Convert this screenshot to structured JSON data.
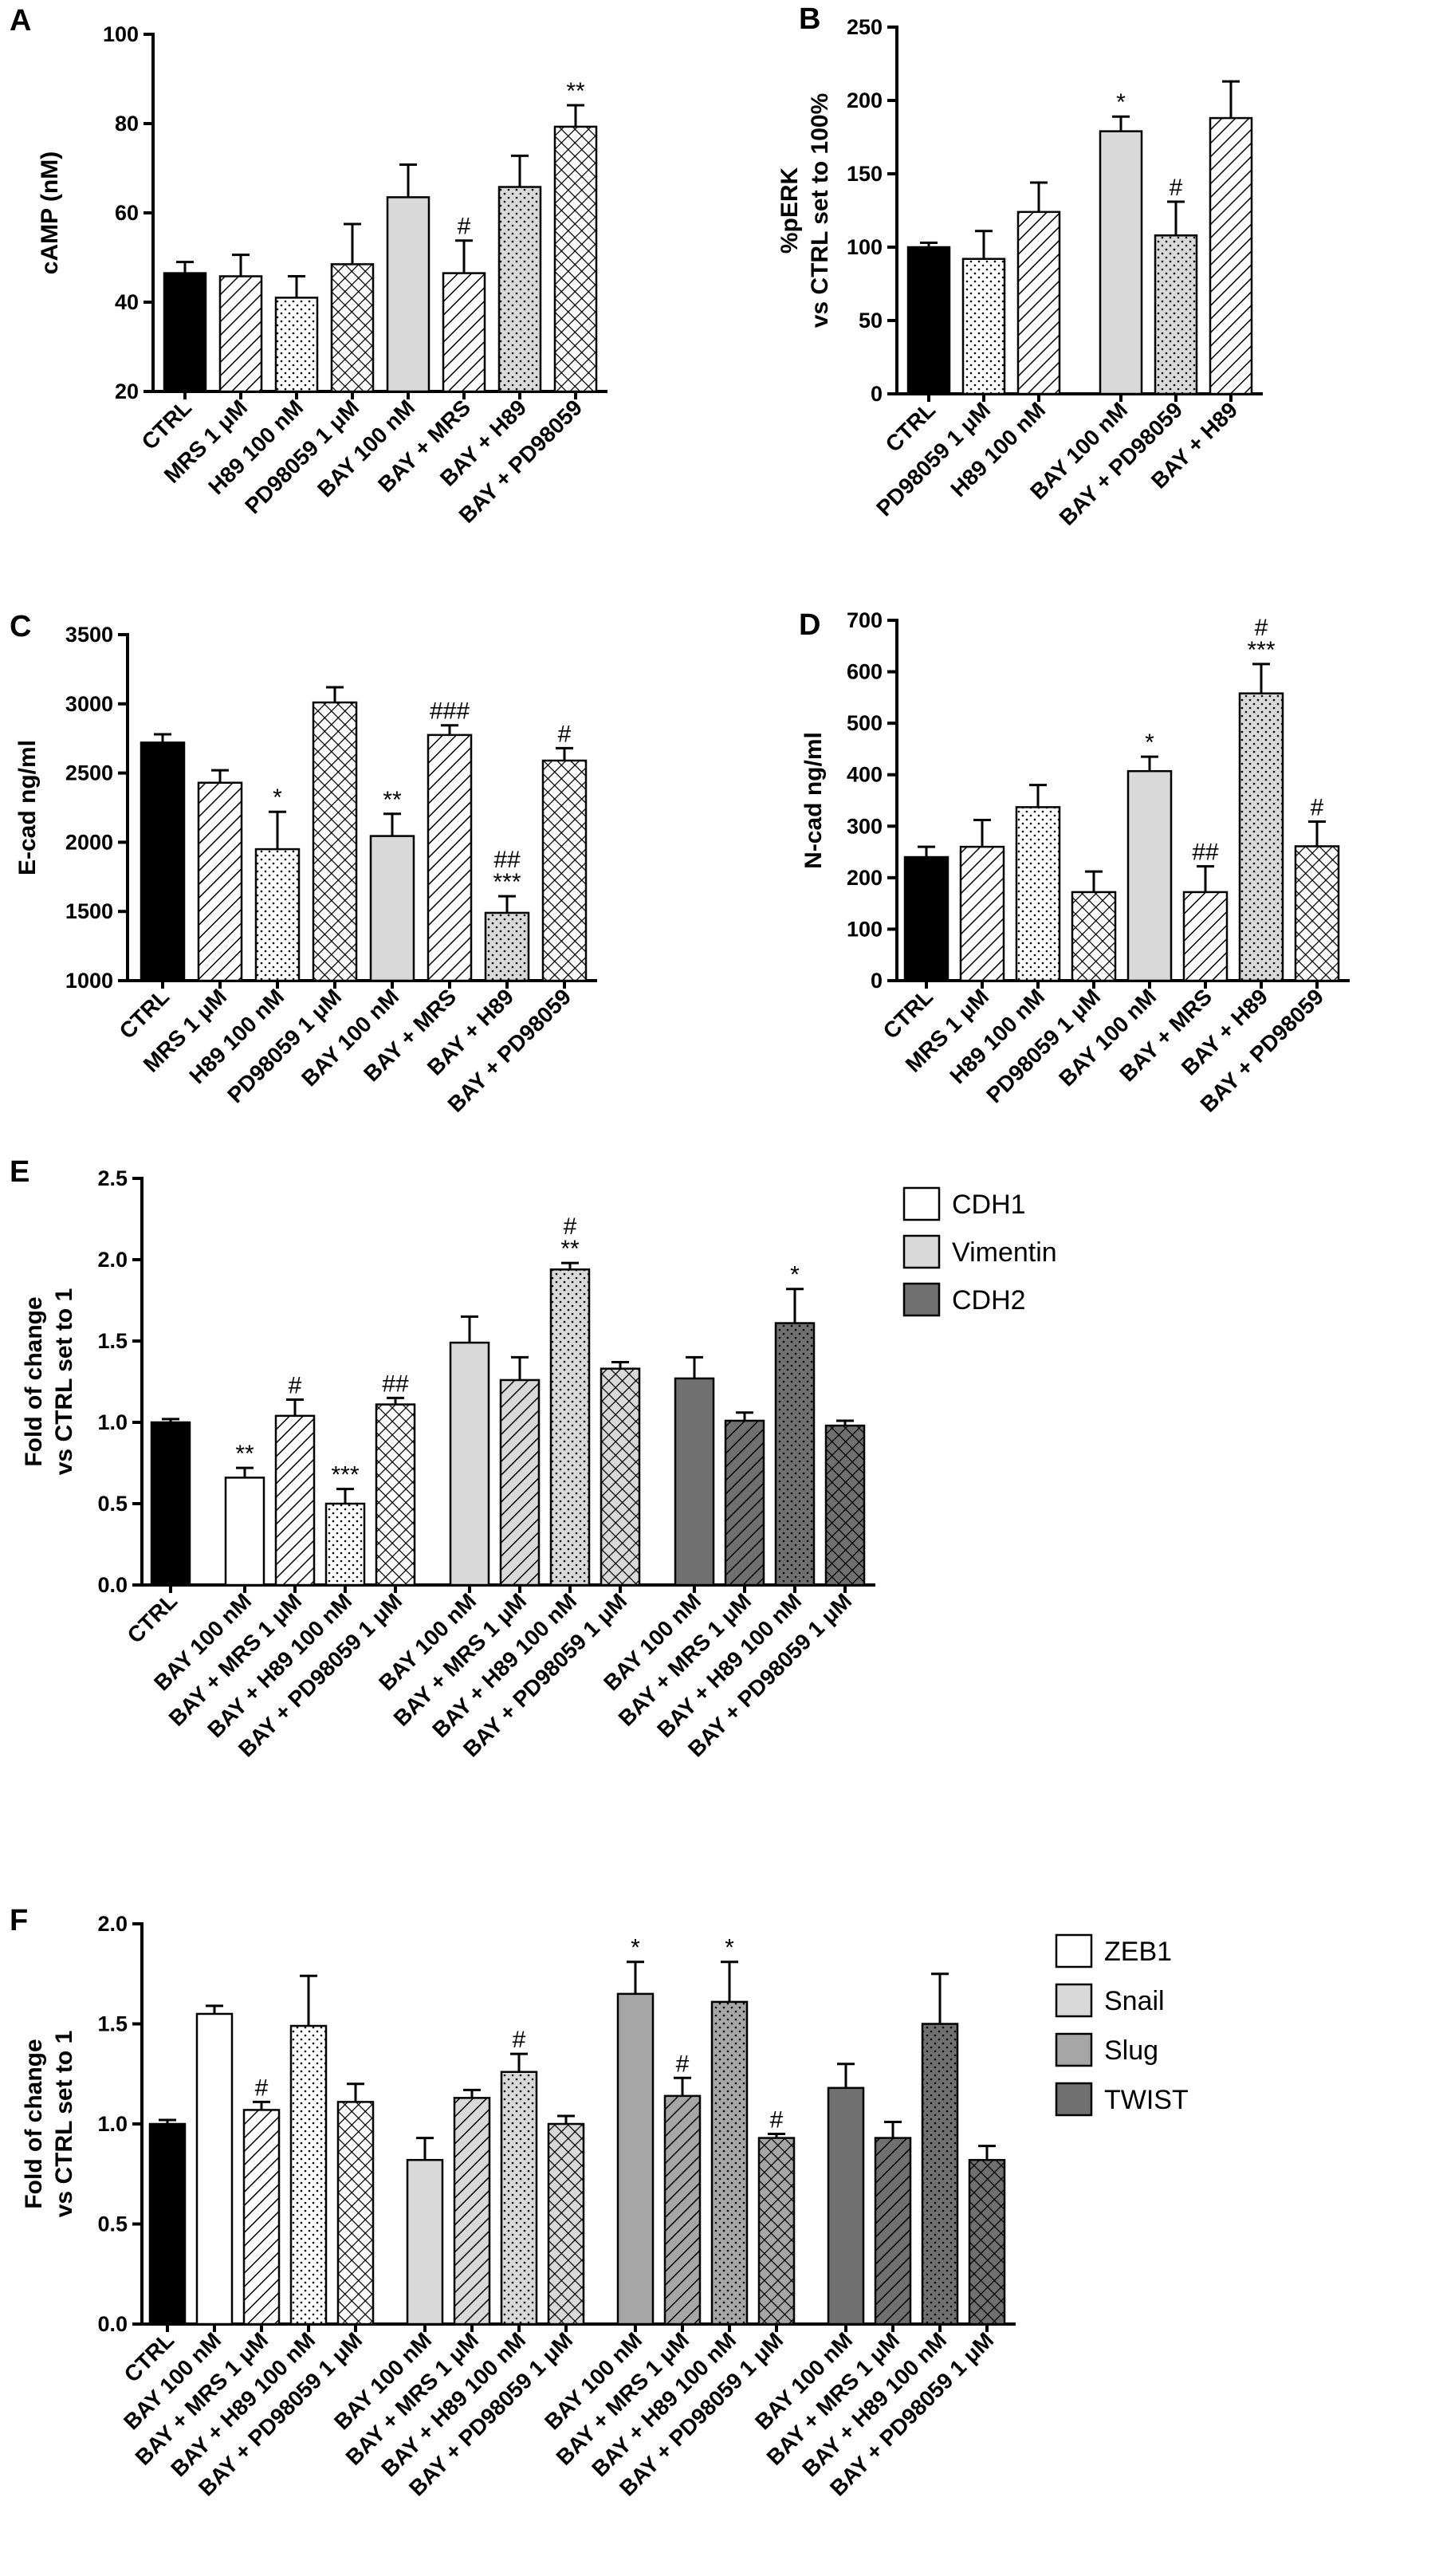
{
  "colors": {
    "black": "#000000",
    "white": "#ffffff",
    "light": "#d9d9d9",
    "mid": "#a6a6a6",
    "dark": "#707070"
  },
  "chart_data": [
    {
      "id": "A",
      "type": "bar",
      "panel_label": "A",
      "ylabel": "cAMP (nM)",
      "ylim": [
        20,
        100
      ],
      "yticks": [
        "20",
        "40",
        "60",
        "80",
        "100"
      ],
      "categories": [
        "CTRL",
        "MRS 1 μM",
        "H89 100 nM",
        "PD98059 1 μM",
        "BAY 100 nM",
        "BAY + MRS",
        "BAY + H89",
        "BAY + PD98059"
      ],
      "values": [
        46.5,
        45.8,
        41.0,
        48.5,
        63.5,
        46.5,
        65.8,
        79.3
      ],
      "errors": [
        2.5,
        4.8,
        4.8,
        9.0,
        7.3,
        7.3,
        7.0,
        4.8
      ],
      "annotations": [
        "",
        "",
        "",
        "",
        "",
        "#",
        "",
        "**"
      ],
      "fills": [
        "black",
        "hatch",
        "dots",
        "checker",
        "lightsolid",
        "hatch",
        "lightdots",
        "checker"
      ]
    },
    {
      "id": "B",
      "type": "bar",
      "panel_label": "B",
      "ylabel_lines": [
        "%pERK",
        "vs CTRL set to 100%"
      ],
      "ylim": [
        0,
        250
      ],
      "yticks": [
        "0",
        "50",
        "100",
        "150",
        "200",
        "250"
      ],
      "categories": [
        "CTRL",
        "PD98059 1 μM",
        "H89 100 nM",
        "BAY 100 nM",
        "BAY + PD98059",
        "BAY + H89"
      ],
      "values": [
        100,
        92,
        124,
        179,
        108,
        188
      ],
      "errors": [
        3,
        19,
        20,
        10,
        23,
        25
      ],
      "annotations": [
        "",
        "",
        "",
        "*",
        "#",
        ""
      ],
      "fills": [
        "black",
        "dots",
        "hatch",
        "lightsolid",
        "lightdots",
        "hatch"
      ]
    },
    {
      "id": "C",
      "type": "bar",
      "panel_label": "C",
      "ylabel": "E-cad ng/ml",
      "ylim": [
        1000,
        3500
      ],
      "yticks": [
        "1000",
        "1500",
        "2000",
        "2500",
        "3000",
        "3500"
      ],
      "categories": [
        "CTRL",
        "MRS 1 μM",
        "H89 100 nM",
        "PD98059 1 μM",
        "BAY 100 nM",
        "BAY + MRS",
        "BAY + H89",
        "BAY + PD98059"
      ],
      "values": [
        2720,
        2430,
        1950,
        3010,
        2045,
        2775,
        1490,
        2590
      ],
      "errors": [
        60,
        90,
        270,
        110,
        160,
        70,
        120,
        90
      ],
      "annotations": [
        "",
        "",
        "*",
        "",
        "**",
        "###",
        "##\n***",
        "#"
      ],
      "fills": [
        "black",
        "hatch",
        "dots",
        "checker",
        "lightsolid",
        "hatch",
        "lightdots",
        "checker"
      ]
    },
    {
      "id": "D",
      "type": "bar",
      "panel_label": "D",
      "ylabel": "N-cad ng/ml",
      "ylim": [
        0,
        700
      ],
      "yticks": [
        "0",
        "100",
        "200",
        "300",
        "400",
        "500",
        "600",
        "700"
      ],
      "categories": [
        "CTRL",
        "MRS 1 μM",
        "H89 100 nM",
        "PD98059 1 μM",
        "BAY 100 nM",
        "BAY + MRS",
        "BAY + H89",
        "BAY + PD98059"
      ],
      "values": [
        240,
        260,
        337,
        172,
        407,
        172,
        558,
        261
      ],
      "errors": [
        20,
        52,
        43,
        40,
        28,
        50,
        57,
        48
      ],
      "annotations": [
        "",
        "",
        "",
        "",
        "*",
        "##",
        "#\n***",
        "#"
      ],
      "fills": [
        "black",
        "hatch",
        "dots",
        "checker",
        "lightsolid",
        "hatch",
        "lightdots",
        "checker"
      ]
    },
    {
      "id": "E",
      "type": "bar",
      "panel_label": "E",
      "ylabel_lines": [
        "Fold of change",
        "vs CTRL set to 1"
      ],
      "ylim": [
        0,
        2.5
      ],
      "yticks": [
        "0.0",
        "0.5",
        "1.0",
        "1.5",
        "2.0",
        "2.5"
      ],
      "categories": [
        "CTRL",
        "BAY 100 nM",
        "BAY + MRS 1 μM",
        "BAY + H89 100 nM",
        "BAY + PD98059 1 μM",
        "BAY 100 nM",
        "BAY + MRS 1 μM",
        "BAY + H89 100 nM",
        "BAY + PD98059 1 μM",
        "BAY 100 nM",
        "BAY + MRS 1 μM",
        "BAY + H89 100 nM",
        "BAY + PD98059 1 μM"
      ],
      "groups": [
        1,
        4,
        4,
        4
      ],
      "values": [
        1.0,
        0.66,
        1.04,
        0.5,
        1.11,
        1.49,
        1.26,
        1.94,
        1.33,
        1.27,
        1.01,
        1.61,
        0.98
      ],
      "errors": [
        0.02,
        0.06,
        0.1,
        0.09,
        0.04,
        0.16,
        0.14,
        0.04,
        0.04,
        0.13,
        0.05,
        0.21,
        0.03
      ],
      "annotations": [
        "",
        "**",
        "#",
        "***",
        "##",
        "",
        "",
        "#\n**",
        "",
        "",
        "",
        "*",
        ""
      ],
      "fills": [
        "black",
        "white",
        "whitehatch",
        "whitedots",
        "whitechecker",
        "lightsolid",
        "lighthatch",
        "lightdots",
        "lightchecker",
        "darksolid",
        "darkhatch",
        "darkdots",
        "darkchecker"
      ],
      "legend": [
        {
          "label": "CDH1",
          "fill": "white"
        },
        {
          "label": "Vimentin",
          "fill": "lightsolid"
        },
        {
          "label": "CDH2",
          "fill": "darksolid"
        }
      ]
    },
    {
      "id": "F",
      "type": "bar",
      "panel_label": "F",
      "ylabel_lines": [
        "Fold of change",
        "vs CTRL set to 1"
      ],
      "ylim": [
        0,
        2.0
      ],
      "yticks": [
        "0.0",
        "0.5",
        "1.0",
        "1.5",
        "2.0"
      ],
      "categories": [
        "CTRL",
        "BAY 100 nM",
        "BAY + MRS 1 μM",
        "BAY + H89 100 nM",
        "BAY + PD98059 1 μM",
        "BAY 100 nM",
        "BAY + MRS 1 μM",
        "BAY + H89 100 nM",
        "BAY + PD98059 1 μM",
        "BAY 100 nM",
        "BAY + MRS 1 μM",
        "BAY + H89 100 nM",
        "BAY + PD98059 1 μM",
        "BAY 100 nM",
        "BAY + MRS 1 μM",
        "BAY + H89 100 nM",
        "BAY + PD98059 1 μM"
      ],
      "groups": [
        1,
        4,
        4,
        4,
        4
      ],
      "values": [
        1.0,
        1.55,
        1.07,
        1.49,
        1.11,
        0.82,
        1.13,
        1.26,
        1.0,
        1.65,
        1.14,
        1.61,
        0.93,
        1.18,
        0.93,
        1.5,
        0.82
      ],
      "errors": [
        0.02,
        0.04,
        0.04,
        0.25,
        0.09,
        0.11,
        0.04,
        0.09,
        0.04,
        0.16,
        0.09,
        0.2,
        0.02,
        0.12,
        0.08,
        0.25,
        0.07
      ],
      "annotations": [
        "",
        "",
        "#",
        "",
        "",
        "",
        "",
        "#",
        "",
        "*",
        "#",
        "*",
        "#",
        "",
        "",
        "",
        ""
      ],
      "fills": [
        "black",
        "white",
        "whitehatch",
        "whitedots",
        "whitechecker",
        "lightsolid",
        "lighthatch",
        "lightdots",
        "lightchecker",
        "midsolid",
        "midhatch",
        "middots",
        "midchecker",
        "darksolid",
        "darkhatch",
        "darkdots",
        "darkchecker"
      ],
      "legend": [
        {
          "label": "ZEB1",
          "fill": "white"
        },
        {
          "label": "Snail",
          "fill": "lightsolid"
        },
        {
          "label": "Slug",
          "fill": "midsolid"
        },
        {
          "label": "TWIST",
          "fill": "darksolid"
        }
      ]
    }
  ]
}
